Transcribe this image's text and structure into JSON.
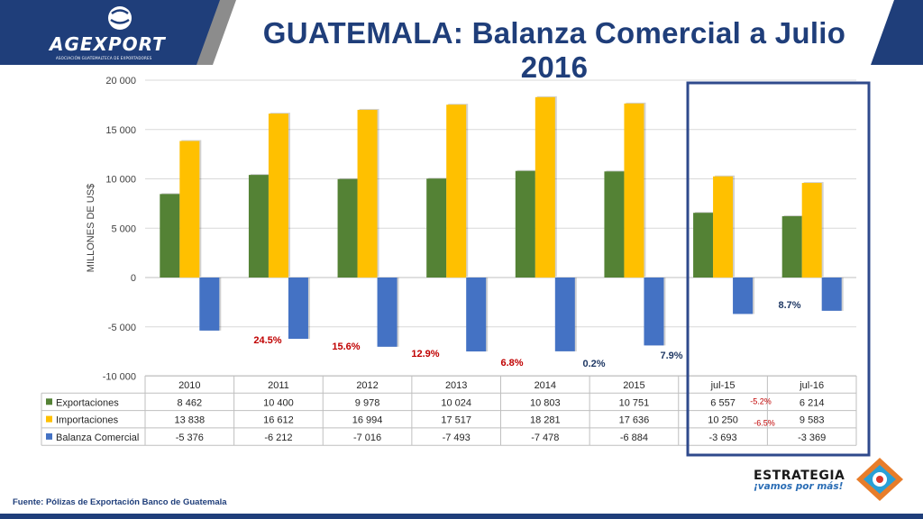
{
  "header": {
    "title": "GUATEMALA:  Balanza Comercial a Julio 2016",
    "brand": "AGEXPORT",
    "brand_sub": "ASOCIACIÓN GUATEMALTECA DE EXPORTADORES"
  },
  "footer": {
    "source": "Fuente: Pólizas de Exportación Banco de Guatemala",
    "logo_main": "ESTRATEGIA",
    "logo_sub": "¡vamos por más!"
  },
  "colors": {
    "exportaciones": "#548235",
    "importaciones": "#ffc000",
    "balanza": "#4472c4",
    "title": "#1f3e7a",
    "highlight_box": "#2f4a8c",
    "growth_red": "#c00000",
    "growth_dark": "#1f3864"
  },
  "chart_data": {
    "type": "bar",
    "categories": [
      "2010",
      "2011",
      "2012",
      "2013",
      "2014",
      "2015",
      "jul-15",
      "jul-16"
    ],
    "ylabel": "MILLONES DE US$",
    "ylim": [
      -10000,
      20000
    ],
    "yticks": [
      -10000,
      -5000,
      0,
      5000,
      10000,
      15000,
      20000
    ],
    "ytick_labels": [
      "-10 000",
      "-5 000",
      "0",
      "5 000",
      "10 000",
      "15 000",
      "20 000"
    ],
    "grid": true,
    "series": [
      {
        "name": "Exportaciones",
        "values": [
          8462,
          10400,
          9978,
          10024,
          10803,
          10751,
          6557,
          6214
        ],
        "labels": [
          "8 462",
          "10 400",
          "9 978",
          "10 024",
          "10 803",
          "10 751",
          "6 557",
          "6 214"
        ]
      },
      {
        "name": "Importaciones",
        "values": [
          13838,
          16612,
          16994,
          17517,
          18281,
          17636,
          10250,
          9583
        ],
        "labels": [
          "13 838",
          "16 612",
          "16 994",
          "17 517",
          "18 281",
          "17 636",
          "10 250",
          "9 583"
        ]
      },
      {
        "name": "Balanza Comercial",
        "values": [
          -5376,
          -6212,
          -7016,
          -7493,
          -7478,
          -6884,
          -3693,
          -3369
        ],
        "labels": [
          "-5 376",
          "-6 212",
          "-7 016",
          "-7 493",
          "-7 478",
          "-6 884",
          "-3 693",
          "-3 369"
        ]
      }
    ],
    "growth_annotations": [
      {
        "text": "24.5%",
        "color": "red"
      },
      {
        "text": "15.6%",
        "color": "red"
      },
      {
        "text": "12.9%",
        "color": "red"
      },
      {
        "text": "6.8%",
        "color": "red"
      },
      {
        "text": "0.2%",
        "color": "dark"
      },
      {
        "text": "7.9%",
        "color": "dark"
      },
      {
        "text": "8.7%",
        "color": "dark"
      }
    ],
    "table_annotations": [
      {
        "text": "-5.2%"
      },
      {
        "text": "-6.5%"
      }
    ],
    "highlight": {
      "categories": [
        "jul-15",
        "jul-16"
      ]
    }
  }
}
